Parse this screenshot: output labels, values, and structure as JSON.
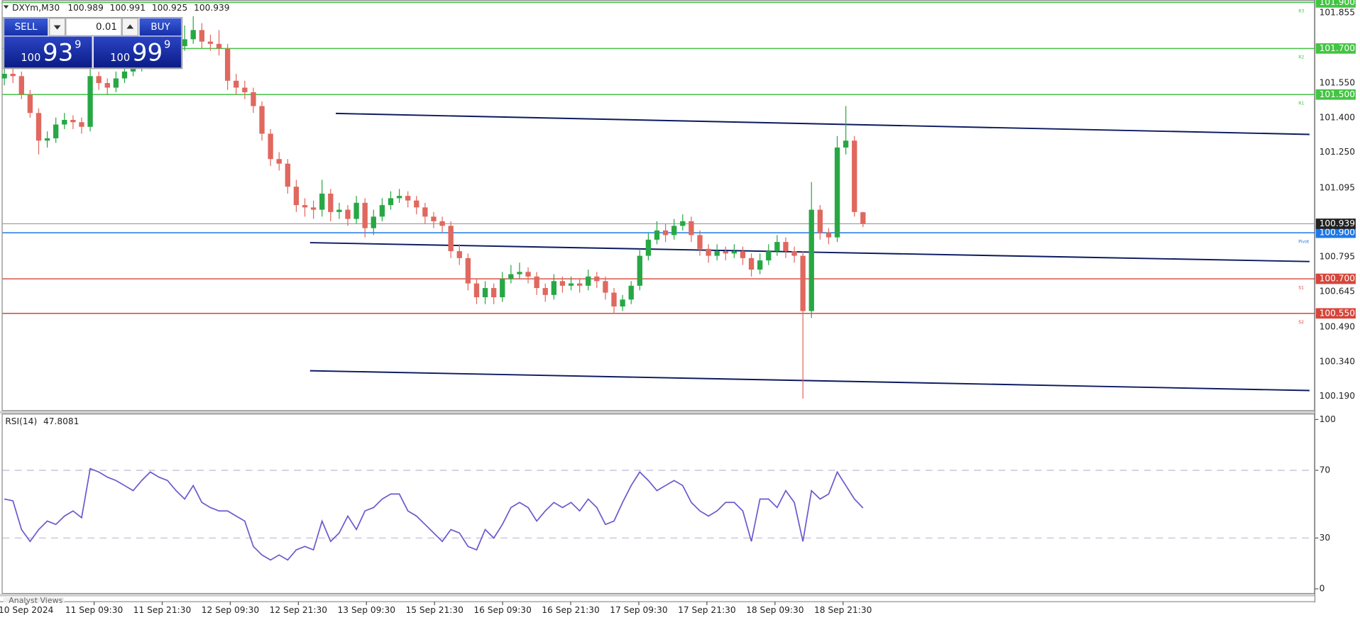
{
  "chart_data": [
    {
      "type": "candlestick",
      "symbol": "DXYm,M30",
      "ylim": [
        100.13,
        101.91
      ],
      "yticks": [
        {
          "value": 101.855,
          "label": "101.855"
        },
        {
          "value": 101.55,
          "label": "101.550"
        },
        {
          "value": 101.4,
          "label": "101.400"
        },
        {
          "value": 101.25,
          "label": "101.250"
        },
        {
          "value": 101.095,
          "label": "101.095"
        },
        {
          "value": 100.795,
          "label": "100.795"
        },
        {
          "value": 100.645,
          "label": "100.645"
        },
        {
          "value": 100.49,
          "label": "100.490"
        },
        {
          "value": 100.34,
          "label": "100.340"
        },
        {
          "value": 100.19,
          "label": "100.190"
        }
      ],
      "xticklabels": [
        "10 Sep 2024",
        "11 Sep 09:30",
        "11 Sep 21:30",
        "12 Sep 09:30",
        "12 Sep 21:30",
        "13 Sep 09:30",
        "15 Sep 21:30",
        "16 Sep 09:30",
        "16 Sep 21:30",
        "17 Sep 09:30",
        "17 Sep 21:30",
        "18 Sep 09:30",
        "18 Sep 21:30"
      ],
      "up_color": "#27a844",
      "down_color": "#e0685e",
      "open": [
        101.57,
        101.59,
        101.58,
        101.5,
        101.42,
        101.3,
        101.31,
        101.37,
        101.39,
        101.38,
        101.36,
        101.58,
        101.55,
        101.53,
        101.57,
        101.6,
        101.62,
        101.63,
        101.65,
        101.67,
        101.7,
        101.71,
        101.74,
        101.78,
        101.73,
        101.72,
        101.7,
        101.56,
        101.53,
        101.51,
        101.45,
        101.33,
        101.22,
        101.2,
        101.1,
        101.02,
        101.01,
        101.0,
        101.07,
        100.99,
        101.0,
        100.96,
        101.03,
        100.92,
        100.97,
        101.02,
        101.05,
        101.06,
        101.04,
        101.01,
        100.97,
        100.95,
        100.93,
        100.82,
        100.79,
        100.68,
        100.62,
        100.66,
        100.62,
        100.7,
        100.72,
        100.73,
        100.71,
        100.66,
        100.63,
        100.69,
        100.67,
        100.68,
        100.67,
        100.71,
        100.69,
        100.64,
        100.58,
        100.61,
        100.67,
        100.8,
        100.87,
        100.91,
        100.89,
        100.93,
        100.95,
        100.89,
        100.83,
        100.8,
        100.82,
        100.81,
        100.82,
        100.79,
        100.74,
        100.78,
        100.82,
        100.86,
        100.82,
        100.8,
        100.56,
        101.0,
        100.9,
        100.88,
        101.27,
        101.3,
        100.989
      ],
      "high": [
        101.62,
        101.62,
        101.6,
        101.52,
        101.44,
        101.34,
        101.4,
        101.42,
        101.41,
        101.4,
        101.62,
        101.6,
        101.57,
        101.6,
        101.63,
        101.65,
        101.66,
        101.68,
        101.7,
        101.74,
        101.76,
        101.8,
        101.84,
        101.81,
        101.76,
        101.78,
        101.72,
        101.59,
        101.56,
        101.53,
        101.47,
        101.35,
        101.25,
        101.22,
        101.13,
        101.05,
        101.04,
        101.13,
        101.09,
        101.03,
        101.02,
        101.06,
        101.05,
        101.0,
        101.05,
        101.08,
        101.09,
        101.08,
        101.06,
        101.03,
        100.99,
        100.97,
        100.95,
        100.85,
        100.81,
        100.7,
        100.69,
        100.68,
        100.73,
        100.76,
        100.77,
        100.75,
        100.73,
        100.68,
        100.72,
        100.71,
        100.71,
        100.7,
        100.74,
        100.73,
        100.71,
        100.66,
        100.63,
        100.69,
        100.83,
        100.9,
        100.95,
        100.94,
        100.96,
        100.98,
        100.97,
        100.91,
        100.85,
        100.85,
        100.84,
        100.85,
        100.84,
        100.81,
        100.81,
        100.85,
        100.89,
        100.88,
        100.84,
        100.82,
        101.12,
        101.02,
        100.92,
        101.32,
        101.45,
        101.32,
        100.991
      ],
      "low": [
        101.54,
        101.55,
        101.48,
        101.4,
        101.24,
        101.27,
        101.29,
        101.35,
        101.35,
        101.33,
        101.34,
        101.52,
        101.5,
        101.51,
        101.55,
        101.58,
        101.6,
        101.61,
        101.63,
        101.65,
        101.68,
        101.69,
        101.72,
        101.7,
        101.69,
        101.67,
        101.52,
        101.5,
        101.48,
        101.42,
        101.3,
        101.19,
        101.17,
        101.07,
        100.99,
        100.97,
        100.96,
        100.97,
        100.95,
        100.96,
        100.93,
        100.94,
        100.88,
        100.89,
        100.95,
        101.0,
        101.03,
        101.01,
        100.98,
        100.94,
        100.92,
        100.9,
        100.79,
        100.76,
        100.65,
        100.59,
        100.59,
        100.59,
        100.6,
        100.68,
        100.7,
        100.68,
        100.63,
        100.6,
        100.61,
        100.64,
        100.65,
        100.64,
        100.65,
        100.66,
        100.61,
        100.55,
        100.56,
        100.59,
        100.65,
        100.78,
        100.85,
        100.86,
        100.87,
        100.91,
        100.86,
        100.8,
        100.77,
        100.78,
        100.78,
        100.79,
        100.76,
        100.71,
        100.72,
        100.76,
        100.8,
        100.79,
        100.77,
        100.18,
        100.53,
        100.87,
        100.85,
        100.86,
        101.24,
        100.97,
        100.925
      ],
      "close": [
        101.59,
        101.58,
        101.5,
        101.42,
        101.3,
        101.31,
        101.37,
        101.39,
        101.38,
        101.36,
        101.58,
        101.55,
        101.53,
        101.57,
        101.6,
        101.62,
        101.63,
        101.65,
        101.67,
        101.7,
        101.71,
        101.74,
        101.78,
        101.73,
        101.72,
        101.7,
        101.56,
        101.53,
        101.51,
        101.45,
        101.33,
        101.22,
        101.2,
        101.1,
        101.02,
        101.01,
        101.0,
        101.07,
        100.99,
        101.0,
        100.96,
        101.03,
        100.92,
        100.97,
        101.02,
        101.05,
        101.06,
        101.04,
        101.01,
        100.97,
        100.95,
        100.93,
        100.82,
        100.79,
        100.68,
        100.62,
        100.66,
        100.62,
        100.7,
        100.72,
        100.73,
        100.71,
        100.66,
        100.63,
        100.69,
        100.67,
        100.68,
        100.67,
        100.71,
        100.69,
        100.64,
        100.58,
        100.61,
        100.67,
        100.8,
        100.87,
        100.91,
        100.89,
        100.93,
        100.95,
        100.89,
        100.83,
        100.8,
        100.82,
        100.81,
        100.82,
        100.79,
        100.74,
        100.78,
        100.82,
        100.86,
        100.82,
        100.8,
        100.56,
        101.0,
        100.9,
        100.88,
        101.27,
        101.3,
        100.99,
        100.939
      ],
      "levels": [
        {
          "value": 101.9,
          "label": "101.900",
          "tag": "R3",
          "color": "#44c444"
        },
        {
          "value": 101.7,
          "label": "101.700",
          "tag": "R2",
          "color": "#44c444"
        },
        {
          "value": 101.5,
          "label": "101.500",
          "tag": "R1",
          "color": "#44c444"
        },
        {
          "value": 100.9,
          "label": "100.900",
          "tag": "Pivot",
          "color": "#1e78e6"
        },
        {
          "value": 100.7,
          "label": "100.700",
          "tag": "S1",
          "color": "#d6453a"
        },
        {
          "value": 100.55,
          "label": "100.550",
          "tag": "S2",
          "color": "#d6453a"
        }
      ],
      "trendline_color": "#0b1a5e",
      "trendlines": [
        {
          "x": [
            38.6,
            152
          ],
          "y": [
            101.418,
            101.327
          ]
        },
        {
          "x": [
            35.6,
            152
          ],
          "y": [
            100.857,
            100.775
          ]
        },
        {
          "x": [
            35.6,
            152
          ],
          "y": [
            100.301,
            100.215
          ]
        }
      ]
    },
    {
      "type": "line",
      "name": "RSI(14)",
      "color": "#6a5acd",
      "ylim": [
        -3,
        103
      ],
      "yticks": [
        0,
        30,
        70,
        100
      ],
      "levels": [
        30,
        70
      ],
      "values": [
        53,
        52,
        35,
        28,
        35,
        40,
        38,
        43,
        46,
        42,
        71,
        69,
        66,
        64,
        61,
        58,
        64,
        69,
        66,
        64,
        58,
        53,
        61,
        51,
        48,
        46,
        46,
        43,
        40,
        25,
        20,
        17,
        20,
        17,
        23,
        25,
        23,
        40,
        28,
        33,
        43,
        35,
        46,
        48,
        53,
        56,
        56,
        46,
        43,
        38,
        33,
        28,
        35,
        33,
        25,
        23,
        35,
        30,
        38,
        48,
        51,
        48,
        40,
        46,
        51,
        48,
        51,
        46,
        53,
        48,
        38,
        40,
        51,
        61,
        69,
        64,
        58,
        61,
        64,
        61,
        51,
        46,
        43,
        46,
        51,
        51,
        46,
        28,
        53,
        53,
        48,
        58,
        51,
        28,
        58,
        53,
        56,
        69,
        61,
        53,
        47.8081
      ]
    }
  ],
  "trade_panel": {
    "sell": "SELL",
    "buy": "BUY",
    "lot": "0.01",
    "bid": {
      "small": "100",
      "big": "93",
      "sup": "9"
    },
    "ask": {
      "small": "100",
      "big": "99",
      "sup": "9"
    }
  },
  "footer_tab": "Analyst Views"
}
